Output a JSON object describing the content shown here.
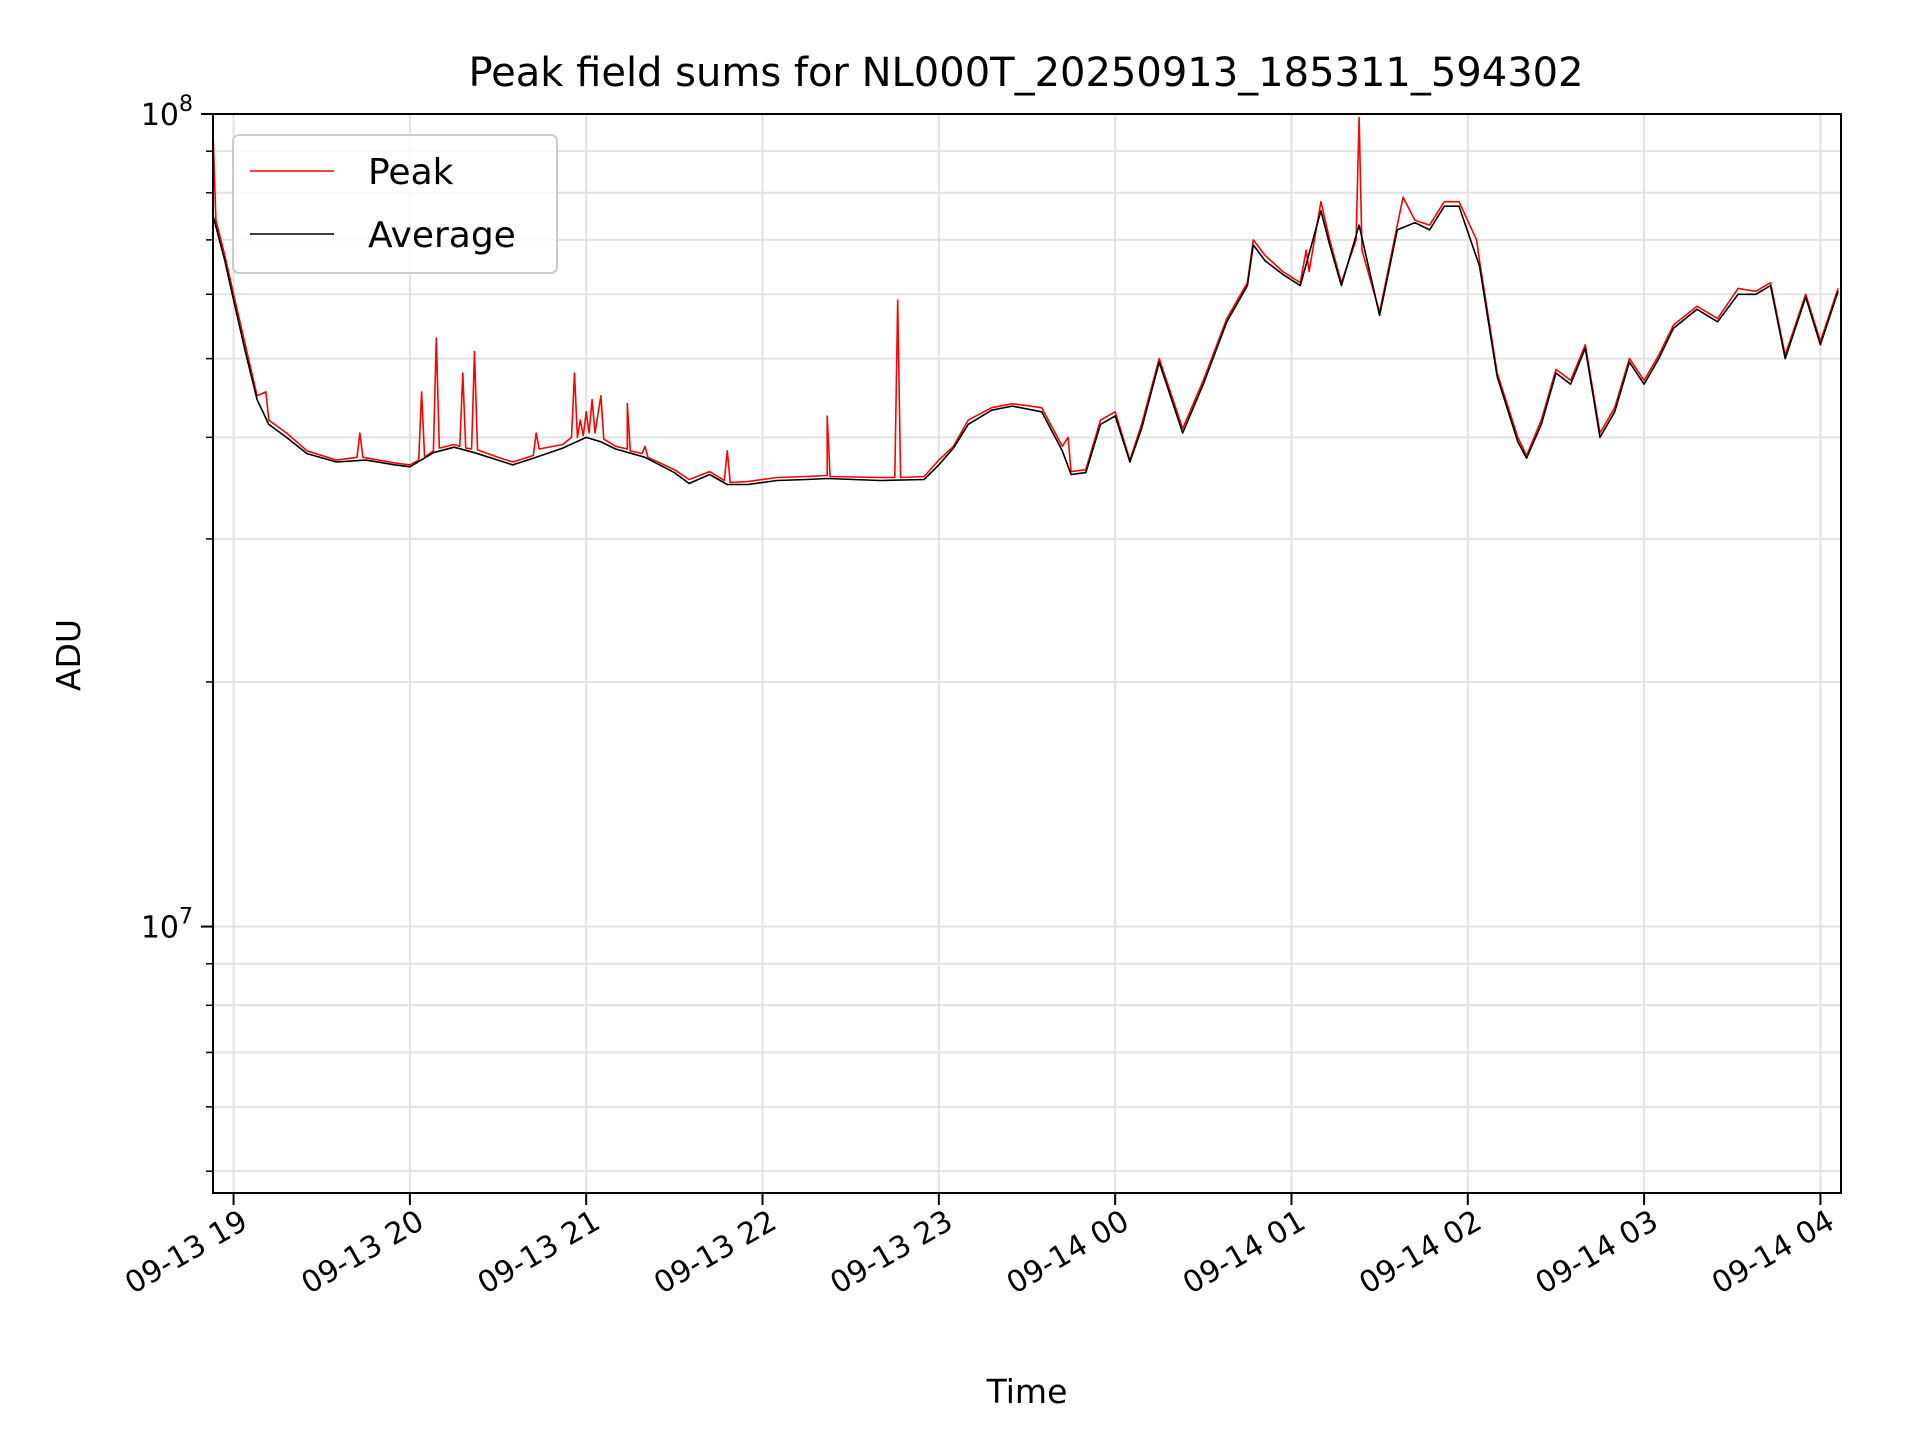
{
  "chart_data": {
    "type": "line",
    "title": "Peak field sums for NL000T_20250913_185311_594302",
    "xlabel": "Time",
    "ylabel": "ADU",
    "y_scale": "log",
    "ylim": [
      4700000,
      100000000
    ],
    "xlim": [
      "2025-09-13 18:53",
      "2025-09-14 04:07"
    ],
    "x_ticks": [
      {
        "value": "2025-09-13 19:00",
        "label": "09-13 19"
      },
      {
        "value": "2025-09-13 20:00",
        "label": "09-13 20"
      },
      {
        "value": "2025-09-13 21:00",
        "label": "09-13 21"
      },
      {
        "value": "2025-09-13 22:00",
        "label": "09-13 22"
      },
      {
        "value": "2025-09-13 23:00",
        "label": "09-13 23"
      },
      {
        "value": "2025-09-14 00:00",
        "label": "09-14 00"
      },
      {
        "value": "2025-09-14 01:00",
        "label": "09-14 01"
      },
      {
        "value": "2025-09-14 02:00",
        "label": "09-14 02"
      },
      {
        "value": "2025-09-14 03:00",
        "label": "09-14 03"
      },
      {
        "value": "2025-09-14 04:00",
        "label": "09-14 04"
      }
    ],
    "y_major_ticks": [
      {
        "value": 10000000,
        "base": "10",
        "exp": "7"
      },
      {
        "value": 100000000,
        "base": "10",
        "exp": "8"
      }
    ],
    "y_minor_ticks": [
      5000000,
      6000000,
      7000000,
      8000000,
      9000000,
      20000000,
      30000000,
      40000000,
      50000000,
      60000000,
      70000000,
      80000000,
      90000000
    ],
    "grid": true,
    "legend_position": "top-left",
    "series": [
      {
        "name": "Peak",
        "color": "#ff0000",
        "points": [
          [
            "2025-09-13 18:53",
            95000000
          ],
          [
            "2025-09-13 18:54",
            74000000
          ],
          [
            "2025-09-13 18:57",
            67000000
          ],
          [
            "2025-09-13 19:00",
            60000000
          ],
          [
            "2025-09-13 19:04",
            52000000
          ],
          [
            "2025-09-13 19:08",
            45000000
          ],
          [
            "2025-09-13 19:11",
            45500000
          ],
          [
            "2025-09-13 19:12",
            42000000
          ],
          [
            "2025-09-13 19:18",
            40500000
          ],
          [
            "2025-09-13 19:25",
            38500000
          ],
          [
            "2025-09-13 19:35",
            37500000
          ],
          [
            "2025-09-13 19:42",
            37800000
          ],
          [
            "2025-09-13 19:43",
            40500000
          ],
          [
            "2025-09-13 19:44",
            37800000
          ],
          [
            "2025-09-13 19:55",
            37200000
          ],
          [
            "2025-09-13 20:00",
            37000000
          ],
          [
            "2025-09-13 20:03",
            37500000
          ],
          [
            "2025-09-13 20:04",
            45500000
          ],
          [
            "2025-09-13 20:05",
            37800000
          ],
          [
            "2025-09-13 20:08",
            38500000
          ],
          [
            "2025-09-13 20:09",
            53000000
          ],
          [
            "2025-09-13 20:10",
            38800000
          ],
          [
            "2025-09-13 20:15",
            39200000
          ],
          [
            "2025-09-13 20:17",
            39000000
          ],
          [
            "2025-09-13 20:18",
            48000000
          ],
          [
            "2025-09-13 20:19",
            38800000
          ],
          [
            "2025-09-13 20:21",
            38700000
          ],
          [
            "2025-09-13 20:22",
            51000000
          ],
          [
            "2025-09-13 20:23",
            38600000
          ],
          [
            "2025-09-13 20:30",
            37800000
          ],
          [
            "2025-09-13 20:35",
            37300000
          ],
          [
            "2025-09-13 20:42",
            38000000
          ],
          [
            "2025-09-13 20:43",
            40500000
          ],
          [
            "2025-09-13 20:44",
            38700000
          ],
          [
            "2025-09-13 20:52",
            39200000
          ],
          [
            "2025-09-13 20:55",
            40000000
          ],
          [
            "2025-09-13 20:56",
            48000000
          ],
          [
            "2025-09-13 20:57",
            40000000
          ],
          [
            "2025-09-13 20:58",
            42000000
          ],
          [
            "2025-09-13 20:59",
            40200000
          ],
          [
            "2025-09-13 21:00",
            43000000
          ],
          [
            "2025-09-13 21:01",
            40500000
          ],
          [
            "2025-09-13 21:02",
            44500000
          ],
          [
            "2025-09-13 21:03",
            40500000
          ],
          [
            "2025-09-13 21:05",
            45000000
          ],
          [
            "2025-09-13 21:06",
            39800000
          ],
          [
            "2025-09-13 21:10",
            39000000
          ],
          [
            "2025-09-13 21:14",
            38700000
          ],
          [
            "2025-09-13 21:14",
            44000000
          ],
          [
            "2025-09-13 21:15",
            38500000
          ],
          [
            "2025-09-13 21:19",
            38200000
          ],
          [
            "2025-09-13 21:20",
            39000000
          ],
          [
            "2025-09-13 21:21",
            37800000
          ],
          [
            "2025-09-13 21:30",
            36500000
          ],
          [
            "2025-09-13 21:35",
            35500000
          ],
          [
            "2025-09-13 21:42",
            36300000
          ],
          [
            "2025-09-13 21:47",
            35400000
          ],
          [
            "2025-09-13 21:48",
            38500000
          ],
          [
            "2025-09-13 21:49",
            35200000
          ],
          [
            "2025-09-13 21:55",
            35300000
          ],
          [
            "2025-09-13 22:05",
            35700000
          ],
          [
            "2025-09-13 22:15",
            35800000
          ],
          [
            "2025-09-13 22:22",
            35900000
          ],
          [
            "2025-09-13 22:22",
            42500000
          ],
          [
            "2025-09-13 22:23",
            35800000
          ],
          [
            "2025-09-13 22:40",
            35700000
          ],
          [
            "2025-09-13 22:45",
            35700000
          ],
          [
            "2025-09-13 22:46",
            59000000
          ],
          [
            "2025-09-13 22:47",
            35700000
          ],
          [
            "2025-09-13 22:55",
            35800000
          ],
          [
            "2025-09-13 23:00",
            37500000
          ],
          [
            "2025-09-13 23:05",
            39000000
          ],
          [
            "2025-09-13 23:10",
            42000000
          ],
          [
            "2025-09-13 23:18",
            43500000
          ],
          [
            "2025-09-13 23:25",
            44000000
          ],
          [
            "2025-09-13 23:35",
            43500000
          ],
          [
            "2025-09-13 23:42",
            39000000
          ],
          [
            "2025-09-13 23:44",
            40000000
          ],
          [
            "2025-09-13 23:45",
            36300000
          ],
          [
            "2025-09-13 23:50",
            36500000
          ],
          [
            "2025-09-13 23:55",
            42000000
          ],
          [
            "2025-09-14 00:00",
            43000000
          ],
          [
            "2025-09-14 00:05",
            37500000
          ],
          [
            "2025-09-14 00:09",
            41500000
          ],
          [
            "2025-09-14 00:15",
            50000000
          ],
          [
            "2025-09-14 00:23",
            41000000
          ],
          [
            "2025-09-14 00:30",
            47000000
          ],
          [
            "2025-09-14 00:38",
            56000000
          ],
          [
            "2025-09-14 00:45",
            62000000
          ],
          [
            "2025-09-14 00:47",
            70000000
          ],
          [
            "2025-09-14 00:51",
            67000000
          ],
          [
            "2025-09-14 00:57",
            64000000
          ],
          [
            "2025-09-14 01:03",
            62000000
          ],
          [
            "2025-09-14 01:05",
            68000000
          ],
          [
            "2025-09-14 01:06",
            64000000
          ],
          [
            "2025-09-14 01:10",
            78000000
          ],
          [
            "2025-09-14 01:13",
            70000000
          ],
          [
            "2025-09-14 01:17",
            62000000
          ],
          [
            "2025-09-14 01:22",
            70000000
          ],
          [
            "2025-09-14 01:23",
            99000000
          ],
          [
            "2025-09-14 01:24",
            68000000
          ],
          [
            "2025-09-14 01:30",
            57000000
          ],
          [
            "2025-09-14 01:36",
            73000000
          ],
          [
            "2025-09-14 01:38",
            79000000
          ],
          [
            "2025-09-14 01:42",
            74000000
          ],
          [
            "2025-09-14 01:47",
            73000000
          ],
          [
            "2025-09-14 01:52",
            78000000
          ],
          [
            "2025-09-14 01:57",
            78000000
          ],
          [
            "2025-09-14 02:03",
            70000000
          ],
          [
            "2025-09-14 02:04",
            66000000
          ],
          [
            "2025-09-14 02:10",
            48000000
          ],
          [
            "2025-09-14 02:17",
            40000000
          ],
          [
            "2025-09-14 02:20",
            38000000
          ],
          [
            "2025-09-14 02:25",
            42000000
          ],
          [
            "2025-09-14 02:30",
            48500000
          ],
          [
            "2025-09-14 02:35",
            47000000
          ],
          [
            "2025-09-14 02:40",
            52000000
          ],
          [
            "2025-09-14 02:45",
            40500000
          ],
          [
            "2025-09-14 02:50",
            43500000
          ],
          [
            "2025-09-14 02:55",
            50000000
          ],
          [
            "2025-09-14 03:00",
            47000000
          ],
          [
            "2025-09-14 03:05",
            50500000
          ],
          [
            "2025-09-14 03:10",
            55000000
          ],
          [
            "2025-09-14 03:18",
            58000000
          ],
          [
            "2025-09-14 03:25",
            56000000
          ],
          [
            "2025-09-14 03:32",
            61000000
          ],
          [
            "2025-09-14 03:38",
            60500000
          ],
          [
            "2025-09-14 03:43",
            62000000
          ],
          [
            "2025-09-14 03:48",
            50500000
          ],
          [
            "2025-09-14 03:55",
            60000000
          ],
          [
            "2025-09-14 04:00",
            52500000
          ],
          [
            "2025-09-14 04:06",
            61000000
          ]
        ]
      },
      {
        "name": "Average",
        "color": "#000000",
        "points": [
          [
            "2025-09-13 18:53",
            75000000
          ],
          [
            "2025-09-13 18:57",
            66000000
          ],
          [
            "2025-09-13 19:00",
            59000000
          ],
          [
            "2025-09-13 19:04",
            51000000
          ],
          [
            "2025-09-13 19:08",
            44500000
          ],
          [
            "2025-09-13 19:12",
            41500000
          ],
          [
            "2025-09-13 19:18",
            40000000
          ],
          [
            "2025-09-13 19:25",
            38200000
          ],
          [
            "2025-09-13 19:35",
            37300000
          ],
          [
            "2025-09-13 19:45",
            37500000
          ],
          [
            "2025-09-13 19:55",
            37000000
          ],
          [
            "2025-09-13 20:00",
            36800000
          ],
          [
            "2025-09-13 20:08",
            38300000
          ],
          [
            "2025-09-13 20:15",
            38900000
          ],
          [
            "2025-09-13 20:22",
            38300000
          ],
          [
            "2025-09-13 20:30",
            37500000
          ],
          [
            "2025-09-13 20:35",
            37000000
          ],
          [
            "2025-09-13 20:42",
            37700000
          ],
          [
            "2025-09-13 20:52",
            38800000
          ],
          [
            "2025-09-13 21:00",
            40000000
          ],
          [
            "2025-09-13 21:05",
            39500000
          ],
          [
            "2025-09-13 21:10",
            38700000
          ],
          [
            "2025-09-13 21:20",
            37800000
          ],
          [
            "2025-09-13 21:30",
            36200000
          ],
          [
            "2025-09-13 21:35",
            35100000
          ],
          [
            "2025-09-13 21:42",
            36000000
          ],
          [
            "2025-09-13 21:48",
            35000000
          ],
          [
            "2025-09-13 21:55",
            35000000
          ],
          [
            "2025-09-13 22:05",
            35400000
          ],
          [
            "2025-09-13 22:15",
            35500000
          ],
          [
            "2025-09-13 22:22",
            35600000
          ],
          [
            "2025-09-13 22:40",
            35400000
          ],
          [
            "2025-09-13 22:55",
            35500000
          ],
          [
            "2025-09-13 23:00",
            37000000
          ],
          [
            "2025-09-13 23:05",
            38800000
          ],
          [
            "2025-09-13 23:10",
            41500000
          ],
          [
            "2025-09-13 23:18",
            43200000
          ],
          [
            "2025-09-13 23:25",
            43700000
          ],
          [
            "2025-09-13 23:35",
            43000000
          ],
          [
            "2025-09-13 23:42",
            38500000
          ],
          [
            "2025-09-13 23:45",
            36000000
          ],
          [
            "2025-09-13 23:50",
            36200000
          ],
          [
            "2025-09-13 23:55",
            41500000
          ],
          [
            "2025-09-14 00:00",
            42500000
          ],
          [
            "2025-09-14 00:05",
            37300000
          ],
          [
            "2025-09-14 00:09",
            41000000
          ],
          [
            "2025-09-14 00:15",
            49500000
          ],
          [
            "2025-09-14 00:23",
            40500000
          ],
          [
            "2025-09-14 00:30",
            46500000
          ],
          [
            "2025-09-14 00:38",
            55500000
          ],
          [
            "2025-09-14 00:45",
            61500000
          ],
          [
            "2025-09-14 00:47",
            69000000
          ],
          [
            "2025-09-14 00:51",
            66000000
          ],
          [
            "2025-09-14 00:57",
            63500000
          ],
          [
            "2025-09-14 01:03",
            61500000
          ],
          [
            "2025-09-14 01:10",
            76000000
          ],
          [
            "2025-09-14 01:13",
            69000000
          ],
          [
            "2025-09-14 01:17",
            61500000
          ],
          [
            "2025-09-14 01:23",
            73000000
          ],
          [
            "2025-09-14 01:30",
            56500000
          ],
          [
            "2025-09-14 01:36",
            72000000
          ],
          [
            "2025-09-14 01:42",
            73500000
          ],
          [
            "2025-09-14 01:47",
            72000000
          ],
          [
            "2025-09-14 01:52",
            77000000
          ],
          [
            "2025-09-14 01:57",
            77000000
          ],
          [
            "2025-09-14 02:04",
            65000000
          ],
          [
            "2025-09-14 02:10",
            47500000
          ],
          [
            "2025-09-14 02:17",
            39500000
          ],
          [
            "2025-09-14 02:20",
            37700000
          ],
          [
            "2025-09-14 02:25",
            41500000
          ],
          [
            "2025-09-14 02:30",
            48000000
          ],
          [
            "2025-09-14 02:35",
            46500000
          ],
          [
            "2025-09-14 02:40",
            51500000
          ],
          [
            "2025-09-14 02:45",
            40000000
          ],
          [
            "2025-09-14 02:50",
            43000000
          ],
          [
            "2025-09-14 02:55",
            49500000
          ],
          [
            "2025-09-14 03:00",
            46500000
          ],
          [
            "2025-09-14 03:05",
            50000000
          ],
          [
            "2025-09-14 03:10",
            54500000
          ],
          [
            "2025-09-14 03:18",
            57500000
          ],
          [
            "2025-09-14 03:25",
            55500000
          ],
          [
            "2025-09-14 03:32",
            60000000
          ],
          [
            "2025-09-14 03:38",
            60000000
          ],
          [
            "2025-09-14 03:43",
            61500000
          ],
          [
            "2025-09-14 03:48",
            50000000
          ],
          [
            "2025-09-14 03:55",
            59500000
          ],
          [
            "2025-09-14 04:00",
            52000000
          ],
          [
            "2025-09-14 04:06",
            60500000
          ]
        ]
      }
    ]
  }
}
